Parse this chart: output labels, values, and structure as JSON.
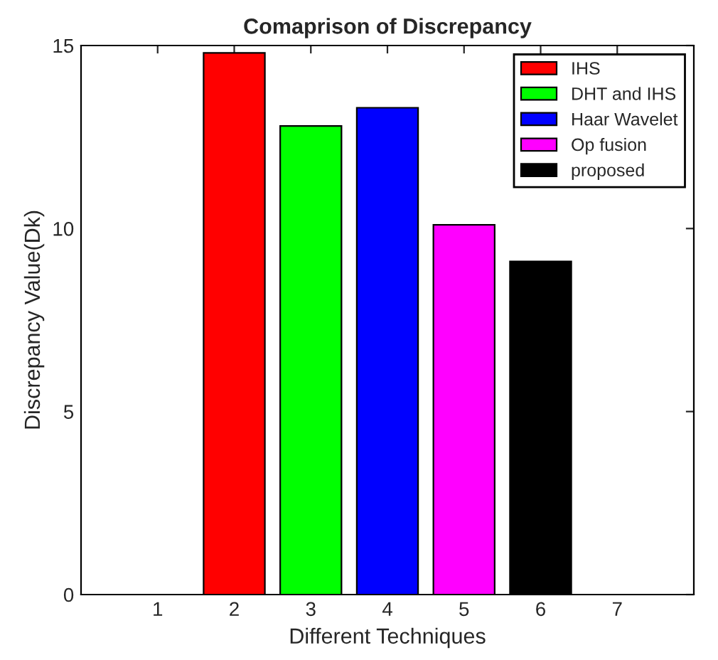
{
  "chart_data": {
    "type": "bar",
    "title": "Comaprison of Discrepancy",
    "xlabel": "Different Techniques",
    "ylabel": "Discrepancy Value(Dk)",
    "xlim": [
      0,
      8
    ],
    "xticks": [
      1,
      2,
      3,
      4,
      5,
      6,
      7
    ],
    "ylim": [
      0,
      15
    ],
    "yticks": [
      0,
      5,
      10,
      15
    ],
    "grid": false,
    "legend": "top right",
    "series": [
      {
        "x": [
          1,
          7
        ],
        "values": [
          0,
          0
        ],
        "color": "#000000"
      },
      {
        "name": "IHS",
        "x": [
          2
        ],
        "values": [
          14.8
        ],
        "color": "#ff0000"
      },
      {
        "name": "DHT and IHS",
        "x": [
          3
        ],
        "values": [
          12.8
        ],
        "color": "#00ff00"
      },
      {
        "name": "Haar Wavelet",
        "x": [
          4
        ],
        "values": [
          13.3
        ],
        "color": "#0000ff"
      },
      {
        "name": "Op fusion",
        "x": [
          5
        ],
        "values": [
          10.1
        ],
        "color": "#ff00ff"
      },
      {
        "name": "proposed",
        "x": [
          6
        ],
        "values": [
          9.1
        ],
        "color": "#000000"
      }
    ]
  }
}
